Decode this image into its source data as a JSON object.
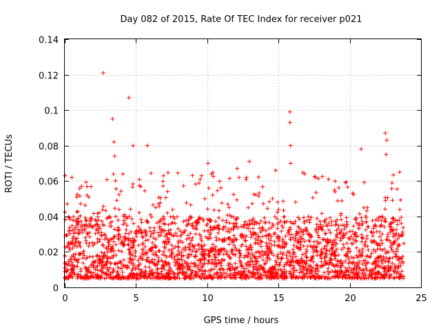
{
  "chart_data": {
    "type": "scatter",
    "title": "Day 082 of 2015, Rate Of TEC Index for receiver p021",
    "xlabel": "GPS time / hours",
    "ylabel": "ROTI / TECUs",
    "xlim": [
      0,
      25
    ],
    "ylim": [
      0,
      0.14
    ],
    "x_ticks": [
      0,
      5,
      10,
      15,
      20,
      25
    ],
    "y_ticks": [
      0,
      0.02,
      0.04,
      0.06,
      0.08,
      0.1,
      0.12,
      0.14
    ],
    "x_tick_labels": [
      "0",
      "5",
      "10",
      "15",
      "20",
      "25"
    ],
    "y_tick_labels": [
      "0",
      "0.02",
      "0.04",
      "0.06",
      "0.08",
      "0.1",
      "0.12",
      "0.14"
    ],
    "grid": true,
    "marker": "+",
    "color": "#ff0000",
    "x_range_observed": [
      0,
      23.8
    ],
    "series": [
      {
        "name": "ROTI",
        "dense_band": [
          0.005,
          0.04
        ],
        "notable_points": [
          {
            "x": 2.7,
            "y": 0.121
          },
          {
            "x": 4.5,
            "y": 0.107
          },
          {
            "x": 3.35,
            "y": 0.095
          },
          {
            "x": 15.8,
            "y": 0.099
          },
          {
            "x": 15.8,
            "y": 0.093
          },
          {
            "x": 22.5,
            "y": 0.087
          },
          {
            "x": 3.45,
            "y": 0.082
          },
          {
            "x": 4.8,
            "y": 0.08
          },
          {
            "x": 5.8,
            "y": 0.08
          },
          {
            "x": 15.85,
            "y": 0.08
          },
          {
            "x": 22.6,
            "y": 0.083
          },
          {
            "x": 20.8,
            "y": 0.078
          },
          {
            "x": 3.5,
            "y": 0.074
          },
          {
            "x": 22.55,
            "y": 0.075
          },
          {
            "x": 10.05,
            "y": 0.07
          },
          {
            "x": 12.95,
            "y": 0.071
          },
          {
            "x": 15.85,
            "y": 0.07
          },
          {
            "x": 12.1,
            "y": 0.067
          },
          {
            "x": 14.8,
            "y": 0.066
          },
          {
            "x": 0.5,
            "y": 0.062
          },
          {
            "x": 9.5,
            "y": 0.061
          },
          {
            "x": 23.5,
            "y": 0.065
          },
          {
            "x": 17.6,
            "y": 0.062
          },
          {
            "x": 18.5,
            "y": 0.061
          }
        ]
      }
    ]
  }
}
